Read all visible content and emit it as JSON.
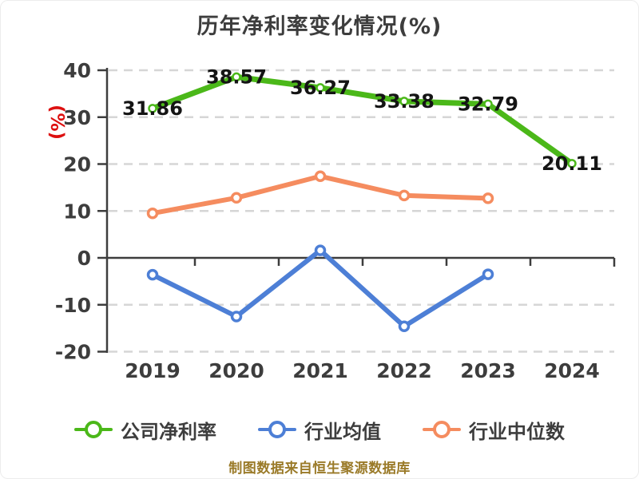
{
  "title": "历年净利率变化情况(%)",
  "footer": "制图数据来自恒生聚源数据库",
  "colors": {
    "title_text": "#3d3d3d",
    "ylabel_text": "#dd1010",
    "tick_text": "#3d3d3d",
    "axis": "#3d3d3d",
    "grid": "#d6d6d6",
    "value_label": "#141414",
    "legend_text": "#3d3d3d",
    "footer_text": "#9a7a28",
    "series_green": "#4bb819",
    "series_blue": "#4d7fd6",
    "series_orange": "#f58c5f"
  },
  "chart_data": {
    "type": "line",
    "title": "历年净利率变化情况(%)",
    "categories": [
      "2019",
      "2020",
      "2021",
      "2022",
      "2023",
      "2024"
    ],
    "series": [
      {
        "name": "公司净利率",
        "color": "#4bb819",
        "values": [
          31.86,
          38.57,
          36.27,
          33.38,
          32.79,
          20.11
        ],
        "labels": [
          "31.86",
          "38.57",
          "36.27",
          "33.38",
          "32.79",
          "20.11"
        ]
      },
      {
        "name": "行业均值",
        "color": "#4d7fd6",
        "values": [
          -3.6,
          -12.5,
          1.6,
          -14.6,
          -3.5,
          null
        ]
      },
      {
        "name": "行业中位数",
        "color": "#f58c5f",
        "values": [
          9.5,
          12.8,
          17.4,
          13.3,
          12.7,
          null
        ]
      }
    ],
    "xlabel": "",
    "ylabel": "(%)",
    "ylim": [
      -20,
      40
    ],
    "y_ticks": [
      40,
      30,
      20,
      10,
      0,
      -10,
      -20
    ],
    "grid": "horizontal-dashed",
    "legend_position": "bottom",
    "note": "制图数据来自恒生聚源数据库"
  }
}
